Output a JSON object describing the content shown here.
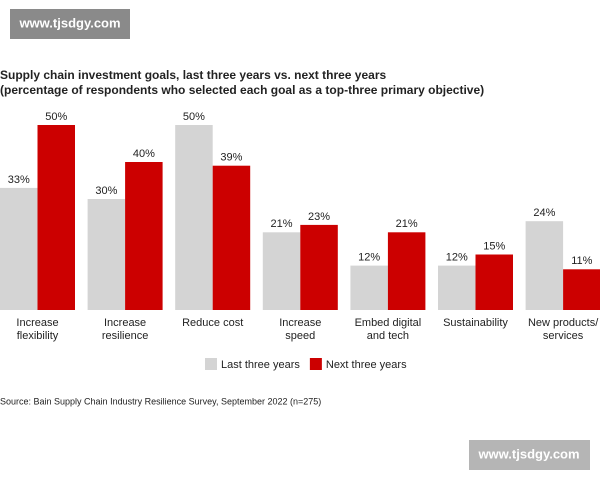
{
  "watermark": "www.tjsdgy.com",
  "chart_data": {
    "type": "bar",
    "title": "Supply chain investment goals, last three years vs. next three years",
    "subtitle": "(percentage of respondents who selected each goal as a top-three primary objective)",
    "categories": [
      "Increase\nflexibility",
      "Increase\nresilience",
      "Reduce cost",
      "Increase\nspeed",
      "Embed digital\nand tech",
      "Sustainability",
      "New products/\nservices"
    ],
    "series": [
      {
        "name": "Last three years",
        "color": "#d4d4d4",
        "values": [
          33,
          30,
          50,
          21,
          12,
          12,
          24
        ],
        "value_labels": [
          "33%",
          "30%",
          "50%",
          "21%",
          "12%",
          "12%",
          "24%"
        ]
      },
      {
        "name": "Next three years",
        "color": "#cc0000",
        "values": [
          50,
          40,
          39,
          23,
          21,
          15,
          11
        ],
        "value_labels": [
          "50%",
          "40%",
          "39%",
          "23%",
          "21%",
          "15%",
          "11%"
        ]
      }
    ],
    "source": "Source: Bain Supply Chain Industry Resilience Survey, September 2022 (n=275)"
  }
}
